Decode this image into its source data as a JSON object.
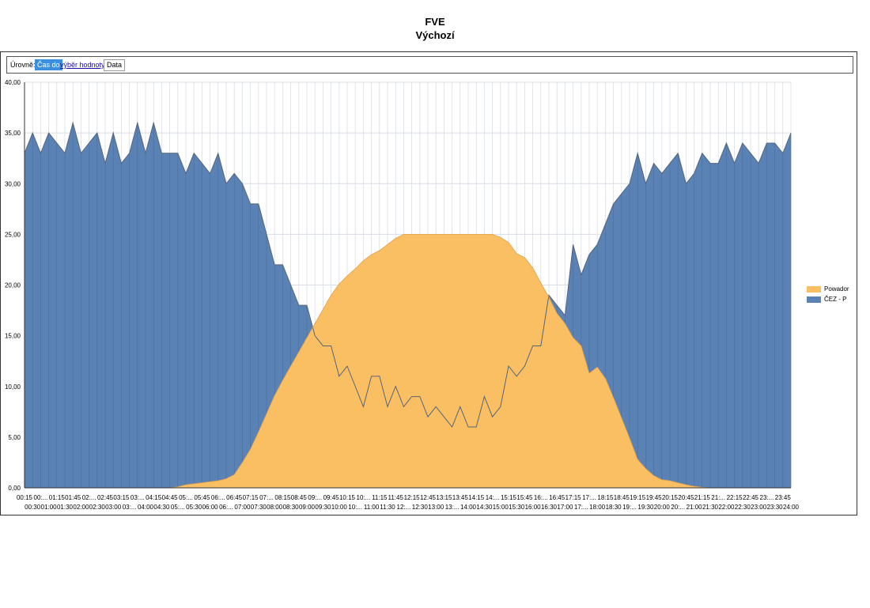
{
  "header": {
    "title": "FVE",
    "subtitle": "Výchozí"
  },
  "toolbar": {
    "levels_label": "Úrovně:",
    "time_chip": "Čas do",
    "value_link": "výběr hodnoty",
    "data_chip": "Data"
  },
  "chart_data": {
    "type": "area",
    "ylim": [
      0,
      40
    ],
    "yticks": [
      "0,00",
      "5,00",
      "10,00",
      "15,00",
      "20,00",
      "25,00",
      "30,00",
      "35,00",
      "40,00"
    ],
    "xticks_top": [
      "00:15",
      "00:...",
      "01:15",
      "01:45",
      "02:...",
      "02:45",
      "03:15",
      "03:...",
      "04:15",
      "04:45",
      "05:...",
      "05:45",
      "06:...",
      "06:45",
      "07:15",
      "07:...",
      "08:15",
      "08:45",
      "09:...",
      "09:45",
      "10:15",
      "10:...",
      "11:15",
      "11:45",
      "12:15",
      "12:45",
      "13:15",
      "13:45",
      "14:15",
      "14:...",
      "15:15",
      "15:45",
      "16:...",
      "16:45",
      "17:15",
      "17:...",
      "18:15",
      "18:45",
      "19:15",
      "19:45",
      "20:15",
      "20:45",
      "21:15",
      "21:...",
      "22:15",
      "22:45",
      "23:...",
      "23:45"
    ],
    "xticks_bottom": [
      "00:30",
      "01:00",
      "01:30",
      "02:00",
      "02:30",
      "03:00",
      "03:...",
      "04:00",
      "04:30",
      "05:...",
      "05:30",
      "06:00",
      "06:...",
      "07:00",
      "07:30",
      "08:00",
      "08:30",
      "09:00",
      "09:30",
      "10:00",
      "10:...",
      "11:00",
      "11:30",
      "12:...",
      "12:30",
      "13:00",
      "13:...",
      "14:00",
      "14:30",
      "15:00",
      "15:30",
      "16:00",
      "16:30",
      "17:00",
      "17:...",
      "18:00",
      "18:30",
      "19:...",
      "19:30",
      "20:00",
      "20:...",
      "21:00",
      "21:30",
      "22:00",
      "22:30",
      "23:00",
      "23:30",
      "24:00"
    ],
    "series": [
      {
        "name": "Powador",
        "color": "#fbbf63",
        "values": [
          0,
          0,
          0,
          0,
          0,
          0,
          0,
          0,
          0,
          0,
          0,
          0,
          0,
          0,
          0,
          0,
          0,
          0,
          0,
          0.1,
          0.3,
          0.4,
          0.5,
          0.6,
          0.7,
          0.9,
          1.3,
          2.5,
          3.8,
          5.5,
          7.3,
          9.1,
          10.6,
          12.0,
          13.4,
          14.8,
          16.2,
          17.6,
          19.0,
          20.1,
          20.9,
          21.6,
          22.4,
          23.0,
          23.4,
          24.0,
          24.6,
          25.0,
          25.0,
          25.0,
          25.0,
          25.0,
          25.0,
          25.0,
          25.0,
          25.0,
          25.0,
          25.0,
          25.0,
          24.7,
          24.2,
          23.1,
          22.7,
          21.7,
          20.2,
          18.8,
          17.2,
          16.2,
          14.8,
          14.0,
          11.3,
          11.9,
          10.8,
          8.9,
          6.9,
          4.9,
          2.8,
          1.9,
          1.2,
          0.8,
          0.7,
          0.5,
          0.3,
          0.15,
          0.05,
          0,
          0,
          0,
          0,
          0,
          0,
          0,
          0,
          0,
          0,
          0
        ]
      },
      {
        "name": "ČEZ - P",
        "color": "#5b82b5",
        "values": [
          33,
          35,
          33,
          35,
          34,
          33,
          36,
          33,
          34,
          35,
          32,
          35,
          32,
          33,
          36,
          33,
          36,
          33,
          33,
          33,
          31,
          33,
          32,
          31,
          33,
          30,
          31,
          30,
          28,
          28,
          25,
          22,
          22,
          20,
          18,
          18,
          15,
          14,
          14,
          11,
          12,
          10,
          8,
          11,
          11,
          8,
          10,
          8,
          9,
          9,
          7,
          8,
          7,
          6,
          8,
          6,
          6,
          9,
          7,
          8,
          12,
          11,
          12,
          14,
          14,
          19,
          18,
          17,
          24,
          21,
          23,
          24,
          26,
          28,
          29,
          30,
          33,
          30,
          32,
          31,
          32,
          33,
          30,
          31,
          33,
          32,
          32,
          34,
          32,
          34,
          33,
          32,
          34,
          34,
          33,
          35
        ]
      }
    ],
    "legend": "right",
    "grid": true
  }
}
